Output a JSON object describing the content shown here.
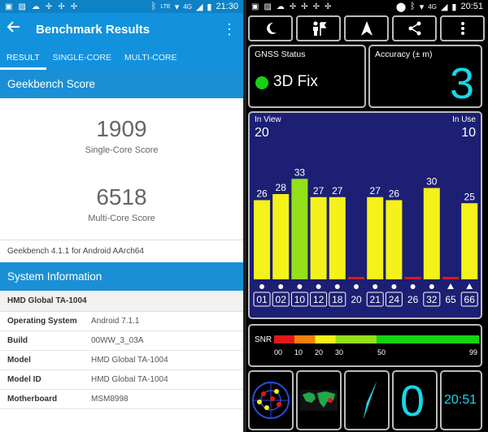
{
  "left": {
    "status": {
      "time": "21:30",
      "network": "LTE",
      "net_gen": "4G"
    },
    "toolbar": {
      "title": "Benchmark Results"
    },
    "tabs": [
      {
        "label": "RESULT",
        "active": true
      },
      {
        "label": "SINGLE-CORE",
        "active": false
      },
      {
        "label": "MULTI-CORE",
        "active": false
      }
    ],
    "geekbench": {
      "section_title": "Geekbench Score",
      "single_score": "1909",
      "single_label": "Single-Core Score",
      "multi_score": "6518",
      "multi_label": "Multi-Core Score",
      "version": "Geekbench 4.1.1 for Android AArch64"
    },
    "system": {
      "section_title": "System Information",
      "device": "HMD Global TA-1004",
      "rows": [
        {
          "key": "Operating System",
          "value": "Android 7.1.1"
        },
        {
          "key": "Build",
          "value": "00WW_3_03A"
        },
        {
          "key": "Model",
          "value": "HMD Global TA-1004"
        },
        {
          "key": "Model ID",
          "value": "HMD Global TA-1004"
        },
        {
          "key": "Motherboard",
          "value": "MSM8998"
        }
      ]
    }
  },
  "right": {
    "status": {
      "time": "20:51",
      "network": "LTE",
      "net_gen": "4G"
    },
    "gnss": {
      "label": "GNSS Status",
      "value": "3D Fix"
    },
    "accuracy": {
      "label": "Accuracy (± m)",
      "value": "3"
    },
    "sky": {
      "in_view_label": "In View",
      "in_view": "20",
      "in_use_label": "In Use",
      "in_use": "10",
      "max_snr": 40,
      "bars": [
        {
          "id": "01",
          "snr": 26,
          "color": "#f4f21a",
          "marker": "dot",
          "boxed": true
        },
        {
          "id": "02",
          "snr": 28,
          "color": "#f4f21a",
          "marker": "dot",
          "boxed": true
        },
        {
          "id": "10",
          "snr": 33,
          "color": "#93e01b",
          "marker": "dot",
          "boxed": true
        },
        {
          "id": "12",
          "snr": 27,
          "color": "#f4f21a",
          "marker": "dot",
          "boxed": true
        },
        {
          "id": "18",
          "snr": 27,
          "color": "#f4f21a",
          "marker": "dot",
          "boxed": true
        },
        {
          "id": "20",
          "snr": 0,
          "color": "#e01818",
          "marker": "dot",
          "boxed": false
        },
        {
          "id": "21",
          "snr": 27,
          "color": "#f4f21a",
          "marker": "dot",
          "boxed": true
        },
        {
          "id": "24",
          "snr": 26,
          "color": "#f4f21a",
          "marker": "dot",
          "boxed": true
        },
        {
          "id": "26",
          "snr": 0,
          "color": "#e01818",
          "marker": "dot",
          "boxed": false
        },
        {
          "id": "32",
          "snr": 30,
          "color": "#f4f21a",
          "marker": "dot",
          "boxed": true
        },
        {
          "id": "65",
          "snr": 0,
          "color": "#e01818",
          "marker": "triangle",
          "boxed": false
        },
        {
          "id": "66",
          "snr": 25,
          "color": "#f4f21a",
          "marker": "triangle",
          "boxed": true
        }
      ]
    },
    "snr_scale": {
      "label": "SNR",
      "ticks": [
        "00",
        "10",
        "20",
        "30",
        "50",
        "99"
      ]
    },
    "tiles": {
      "satellite_count": "0",
      "clock": "20:51"
    },
    "icons": [
      "moon-icon",
      "person-flag-icon",
      "navigation-arrow-icon",
      "share-icon",
      "more-vert-icon"
    ]
  }
}
